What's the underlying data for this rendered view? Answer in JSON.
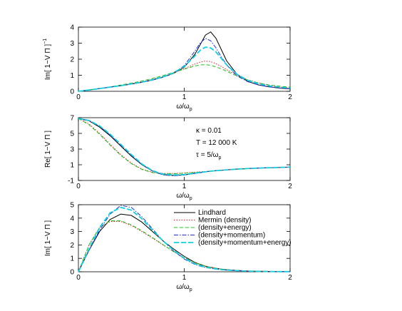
{
  "chart_data": [
    {
      "type": "line",
      "y_label": "Im[ 1−V Π ]",
      "y_label_sup": "−1",
      "x_label": "ω/ω",
      "x_label_sub": "p",
      "xlim": [
        0,
        2
      ],
      "xticks": [
        0,
        1,
        2
      ],
      "ylim": [
        0,
        4
      ],
      "yticks": [
        0,
        1,
        2,
        3,
        4
      ],
      "x": [
        0,
        0.1,
        0.2,
        0.3,
        0.4,
        0.5,
        0.6,
        0.7,
        0.8,
        0.9,
        1.0,
        1.1,
        1.15,
        1.2,
        1.25,
        1.3,
        1.35,
        1.4,
        1.5,
        1.6,
        1.7,
        1.8,
        1.9,
        2.0
      ],
      "series": [
        {
          "color": "#000000",
          "dash": "solid",
          "values": [
            0,
            0.08,
            0.17,
            0.26,
            0.35,
            0.45,
            0.56,
            0.7,
            0.88,
            1.12,
            1.5,
            2.3,
            2.9,
            3.5,
            3.7,
            3.3,
            2.6,
            1.9,
            1.05,
            0.62,
            0.4,
            0.28,
            0.2,
            0.15
          ]
        },
        {
          "color": "#e02020",
          "dash": "dotted",
          "values": [
            0,
            0.08,
            0.17,
            0.27,
            0.37,
            0.48,
            0.6,
            0.75,
            0.93,
            1.15,
            1.4,
            1.7,
            1.82,
            1.88,
            1.85,
            1.72,
            1.55,
            1.35,
            1.0,
            0.72,
            0.52,
            0.38,
            0.28,
            0.22
          ]
        },
        {
          "color": "#20c020",
          "dash": "dashed",
          "values": [
            0,
            0.09,
            0.18,
            0.28,
            0.39,
            0.51,
            0.64,
            0.8,
            0.98,
            1.18,
            1.38,
            1.58,
            1.64,
            1.66,
            1.62,
            1.52,
            1.4,
            1.25,
            0.95,
            0.7,
            0.52,
            0.4,
            0.32,
            0.26
          ]
        },
        {
          "color": "#2030d0",
          "dash": "dashdot",
          "values": [
            0,
            0.08,
            0.17,
            0.26,
            0.35,
            0.45,
            0.56,
            0.7,
            0.88,
            1.15,
            1.6,
            2.5,
            3.0,
            3.3,
            3.15,
            2.7,
            2.15,
            1.65,
            0.95,
            0.6,
            0.4,
            0.28,
            0.21,
            0.16
          ]
        },
        {
          "color": "#10d0e0",
          "dash": "longdash",
          "values": [
            0,
            0.08,
            0.17,
            0.26,
            0.35,
            0.46,
            0.57,
            0.72,
            0.9,
            1.15,
            1.55,
            2.2,
            2.55,
            2.75,
            2.7,
            2.45,
            2.05,
            1.65,
            1.05,
            0.68,
            0.47,
            0.34,
            0.26,
            0.2
          ]
        }
      ]
    },
    {
      "type": "line",
      "y_label": "Re[ 1−V Π ]",
      "x_label": "ω/ω",
      "x_label_sub": "p",
      "annotations": [
        {
          "text": "κ = 0.01"
        },
        {
          "text": "T = 12 000 K"
        },
        {
          "text": "τ = 5/ω",
          "sub": "p"
        }
      ],
      "xlim": [
        0,
        2
      ],
      "xticks": [
        0,
        1,
        2
      ],
      "ylim": [
        -1,
        7
      ],
      "yticks": [
        -1,
        1,
        3,
        5,
        7
      ],
      "x": [
        0,
        0.1,
        0.2,
        0.3,
        0.4,
        0.5,
        0.6,
        0.7,
        0.8,
        0.9,
        1.0,
        1.1,
        1.15,
        1.2,
        1.25,
        1.3,
        1.35,
        1.4,
        1.5,
        1.6,
        1.7,
        1.8,
        1.9,
        2.0
      ],
      "series": [
        {
          "color": "#000000",
          "dash": "solid",
          "values": [
            6.9,
            6.6,
            5.8,
            4.7,
            3.4,
            2.1,
            1.0,
            0.2,
            -0.25,
            -0.35,
            -0.3,
            -0.1,
            0.0,
            0.1,
            0.18,
            0.25,
            0.3,
            0.35,
            0.45,
            0.52,
            0.58,
            0.62,
            0.66,
            0.7
          ]
        },
        {
          "color": "#e02020",
          "dash": "dotted",
          "values": [
            6.9,
            6.2,
            5.0,
            3.6,
            2.3,
            1.2,
            0.45,
            0.05,
            -0.1,
            -0.1,
            -0.05,
            0.05,
            0.1,
            0.15,
            0.2,
            0.25,
            0.3,
            0.34,
            0.43,
            0.5,
            0.56,
            0.61,
            0.65,
            0.69
          ]
        },
        {
          "color": "#20c020",
          "dash": "dashed",
          "values": [
            6.9,
            6.1,
            4.9,
            3.5,
            2.2,
            1.15,
            0.4,
            0.0,
            -0.15,
            -0.15,
            -0.08,
            0.03,
            0.08,
            0.13,
            0.18,
            0.23,
            0.28,
            0.33,
            0.42,
            0.5,
            0.56,
            0.61,
            0.65,
            0.69
          ]
        },
        {
          "color": "#2030d0",
          "dash": "dashdot",
          "values": [
            6.9,
            6.65,
            5.9,
            4.8,
            3.5,
            2.2,
            1.05,
            0.2,
            -0.3,
            -0.4,
            -0.3,
            -0.1,
            0.0,
            0.1,
            0.18,
            0.25,
            0.3,
            0.35,
            0.45,
            0.52,
            0.58,
            0.62,
            0.66,
            0.7
          ]
        },
        {
          "color": "#10d0e0",
          "dash": "longdash",
          "values": [
            6.9,
            6.65,
            5.95,
            4.9,
            3.6,
            2.3,
            1.1,
            0.25,
            -0.2,
            -0.3,
            -0.25,
            -0.08,
            0.02,
            0.1,
            0.18,
            0.25,
            0.3,
            0.35,
            0.45,
            0.52,
            0.58,
            0.62,
            0.66,
            0.7
          ]
        }
      ]
    },
    {
      "type": "line",
      "y_label": "Im[ 1−V Π ]",
      "x_label": "ω/ω",
      "x_label_sub": "p",
      "legend": "upper right",
      "xlim": [
        0,
        2
      ],
      "xticks": [
        0,
        1,
        2
      ],
      "ylim": [
        0,
        5
      ],
      "yticks": [
        0,
        1,
        2,
        3,
        4,
        5
      ],
      "x": [
        0,
        0.1,
        0.2,
        0.3,
        0.4,
        0.5,
        0.6,
        0.7,
        0.8,
        0.9,
        1.0,
        1.1,
        1.15,
        1.2,
        1.25,
        1.3,
        1.35,
        1.4,
        1.5,
        1.6,
        1.7,
        1.8,
        1.9,
        2.0
      ],
      "series": [
        {
          "name": "Lindhard",
          "color": "#000000",
          "dash": "solid",
          "values": [
            0,
            1.6,
            3.0,
            3.9,
            4.3,
            4.2,
            3.7,
            3.0,
            2.3,
            1.7,
            1.15,
            0.7,
            0.55,
            0.42,
            0.33,
            0.26,
            0.2,
            0.16,
            0.1,
            0.06,
            0.04,
            0.03,
            0.02,
            0.01
          ]
        },
        {
          "name": "Mermin (density)",
          "color": "#e02020",
          "dash": "dotted",
          "values": [
            0,
            2.0,
            3.3,
            3.75,
            3.75,
            3.45,
            3.0,
            2.5,
            2.0,
            1.5,
            1.05,
            0.68,
            0.53,
            0.42,
            0.33,
            0.26,
            0.2,
            0.16,
            0.1,
            0.06,
            0.04,
            0.03,
            0.02,
            0.01
          ]
        },
        {
          "name": "(density+energy)",
          "color": "#20c020",
          "dash": "dashed",
          "values": [
            0,
            2.0,
            3.3,
            3.8,
            3.8,
            3.5,
            3.05,
            2.55,
            2.02,
            1.5,
            1.05,
            0.68,
            0.53,
            0.42,
            0.33,
            0.26,
            0.2,
            0.16,
            0.1,
            0.06,
            0.04,
            0.03,
            0.02,
            0.01
          ]
        },
        {
          "name": "(density+momentum)",
          "color": "#2030d0",
          "dash": "dashdot",
          "values": [
            0,
            1.6,
            3.1,
            4.3,
            4.95,
            4.8,
            4.1,
            3.2,
            2.3,
            1.55,
            0.95,
            0.55,
            0.42,
            0.32,
            0.25,
            0.2,
            0.15,
            0.12,
            0.08,
            0.05,
            0.03,
            0.02,
            0.01,
            0.01
          ]
        },
        {
          "name": "(density+momentum+energy)",
          "color": "#10d0e0",
          "dash": "longdash",
          "values": [
            0,
            1.7,
            3.3,
            4.4,
            4.8,
            4.6,
            3.95,
            3.1,
            2.3,
            1.6,
            1.0,
            0.6,
            0.46,
            0.35,
            0.27,
            0.21,
            0.16,
            0.13,
            0.08,
            0.05,
            0.03,
            0.02,
            0.01,
            0.01
          ]
        }
      ]
    }
  ]
}
